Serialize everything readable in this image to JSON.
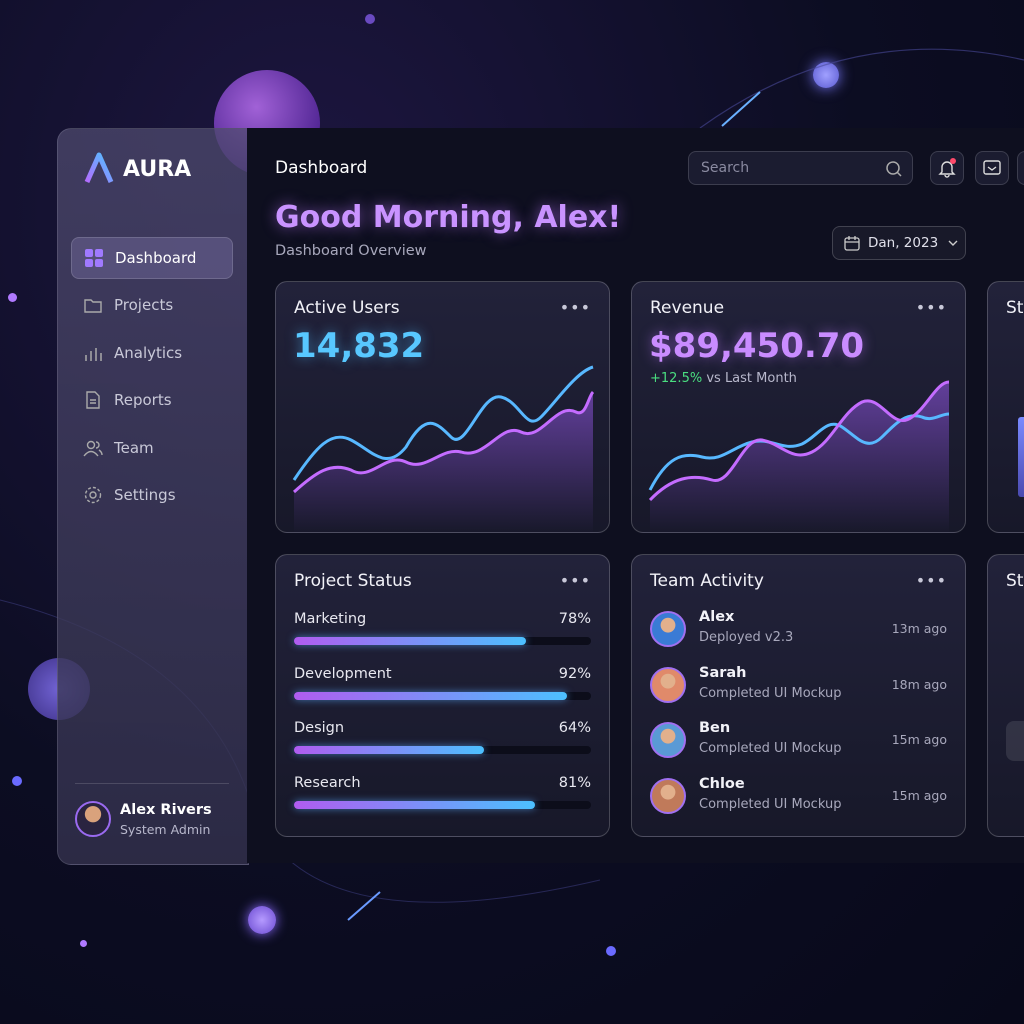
{
  "brand": "AURA",
  "nav": [
    "Dashboard",
    "Projects",
    "Analytics",
    "Reports",
    "Team",
    "Settings"
  ],
  "user": {
    "name": "Alex Rivers",
    "role": "System Admin"
  },
  "header": {
    "title": "Dashboard",
    "search_placeholder": "Search",
    "greeting": "Good Morning, Alex!",
    "subtitle": "Dashboard Overview",
    "date_picker": "Dan, 2023"
  },
  "active_users": {
    "title": "Active Users",
    "value": "14,832"
  },
  "revenue": {
    "title": "Revenue",
    "value": "$89,450.70",
    "change": "+12.5%",
    "change_note": "vs Last Month"
  },
  "project_status": {
    "title": "Project Status",
    "items": [
      {
        "name": "Marketing",
        "percent": {
          "value": 78,
          "label": "78%"
        }
      },
      {
        "name": "Development",
        "percent": {
          "value": 92,
          "label": "92%"
        }
      },
      {
        "name": "Design",
        "percent": {
          "value": 64,
          "label": "64%"
        }
      },
      {
        "name": "Research",
        "percent": {
          "value": 81,
          "label": "81%"
        }
      }
    ]
  },
  "team_activity": {
    "title": "Team Activity",
    "items": [
      {
        "name": "Alex",
        "action": "Deployed v2.3",
        "time": "13m ago"
      },
      {
        "name": "Sarah",
        "action": "Completed UI Mockup",
        "time": "18m ago"
      },
      {
        "name": "Ben",
        "action": "Completed UI Mockup",
        "time": "15m ago"
      },
      {
        "name": "Chloe",
        "action": "Completed UI Mockup",
        "time": "15m ago"
      }
    ]
  },
  "partial_cards": [
    "St",
    "St"
  ]
}
